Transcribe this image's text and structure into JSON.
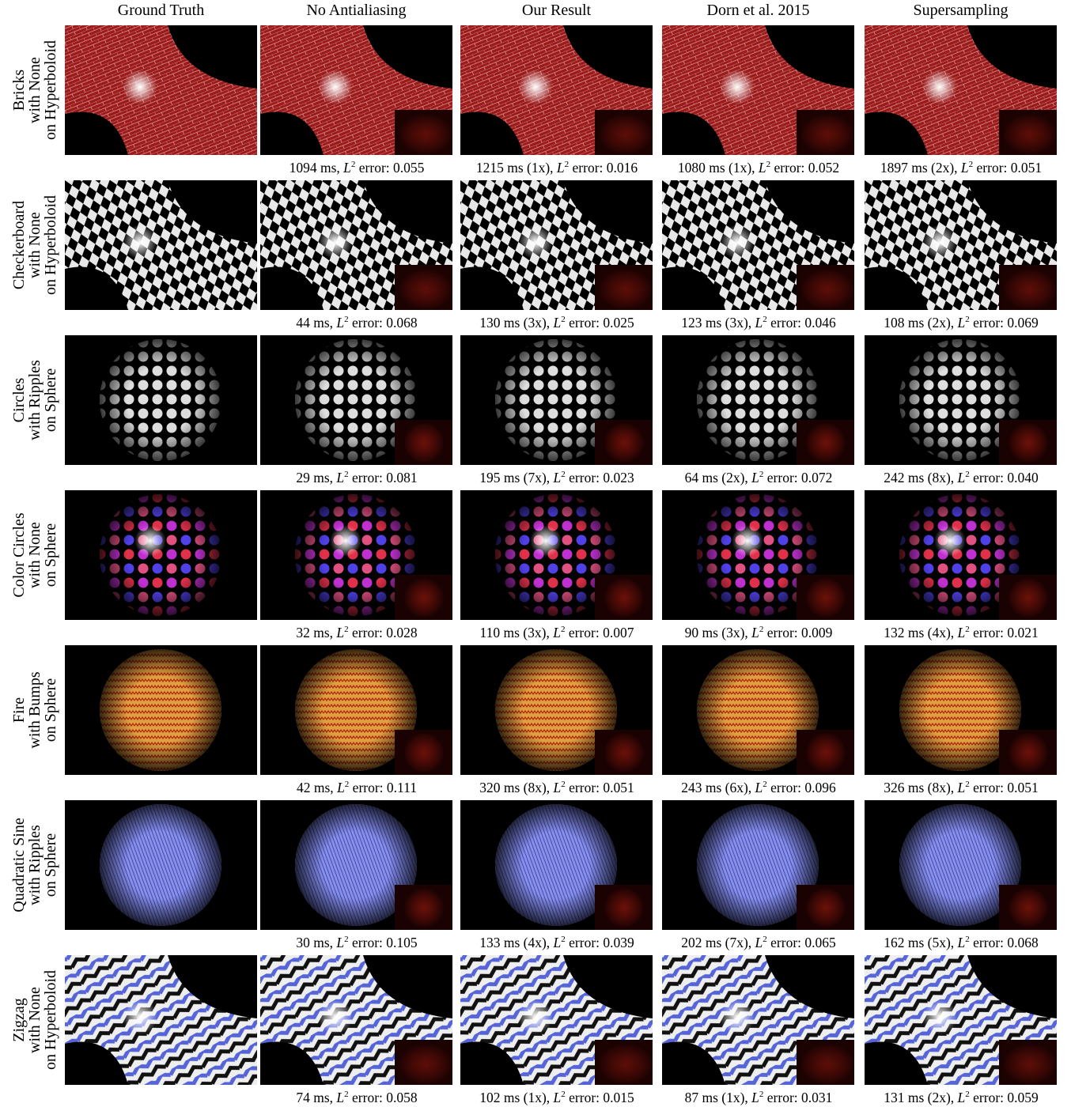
{
  "columns": [
    "Ground Truth",
    "No Antialiasing",
    "Our Result",
    "Dorn et al. 2015",
    "Supersampling"
  ],
  "rows": [
    {
      "label": [
        "Bricks",
        "with None",
        "on Hyperboloid"
      ],
      "captions": [
        [
          "1094 ms,",
          "L",
          "2",
          "error: 0.055"
        ],
        [
          "1215 ms (1x),",
          "L",
          "2",
          "error: 0.016"
        ],
        [
          "1080 ms (1x),",
          "L",
          "2",
          "error: 0.052"
        ],
        [
          "1897 ms (2x),",
          "L",
          "2",
          "error: 0.051"
        ]
      ]
    },
    {
      "label": [
        "Checkerboard",
        "with None",
        "on Hyperboloid"
      ],
      "captions": [
        [
          "44 ms,",
          "L",
          "2",
          "error: 0.068"
        ],
        [
          "130 ms (3x),",
          "L",
          "2",
          "error: 0.025"
        ],
        [
          "123 ms (3x),",
          "L",
          "2",
          "error: 0.046"
        ],
        [
          "108 ms (2x),",
          "L",
          "2",
          "error: 0.069"
        ]
      ]
    },
    {
      "label": [
        "Circles",
        "with Ripples",
        "on Sphere"
      ],
      "captions": [
        [
          "29 ms,",
          "L",
          "2",
          "error: 0.081"
        ],
        [
          "195 ms (7x),",
          "L",
          "2",
          "error: 0.023"
        ],
        [
          "64 ms (2x),",
          "L",
          "2",
          "error: 0.072"
        ],
        [
          "242 ms (8x),",
          "L",
          "2",
          "error: 0.040"
        ]
      ]
    },
    {
      "label": [
        "Color Circles",
        "with None",
        "on Sphere"
      ],
      "captions": [
        [
          "32 ms,",
          "L",
          "2",
          "error: 0.028"
        ],
        [
          "110 ms (3x),",
          "L",
          "2",
          "error: 0.007"
        ],
        [
          "90 ms (3x),",
          "L",
          "2",
          "error: 0.009"
        ],
        [
          "132 ms (4x),",
          "L",
          "2",
          "error: 0.021"
        ]
      ]
    },
    {
      "label": [
        "Fire",
        "with Bumps",
        "on Sphere"
      ],
      "captions": [
        [
          "42 ms,",
          "L",
          "2",
          "error: 0.111"
        ],
        [
          "320 ms (8x),",
          "L",
          "2",
          "error: 0.051"
        ],
        [
          "243 ms (6x),",
          "L",
          "2",
          "error: 0.096"
        ],
        [
          "326 ms (8x),",
          "L",
          "2",
          "error: 0.051"
        ]
      ]
    },
    {
      "label": [
        "Quadratic Sine",
        "with Ripples",
        "on Sphere"
      ],
      "captions": [
        [
          "30 ms,",
          "L",
          "2",
          "error: 0.105"
        ],
        [
          "133 ms (4x),",
          "L",
          "2",
          "error: 0.039"
        ],
        [
          "202 ms (7x),",
          "L",
          "2",
          "error: 0.065"
        ],
        [
          "162 ms (5x),",
          "L",
          "2",
          "error: 0.068"
        ]
      ]
    },
    {
      "label": [
        "Zigzag",
        "with None",
        "on Hyperboloid"
      ],
      "captions": [
        [
          "74 ms,",
          "L",
          "2",
          "error: 0.058"
        ],
        [
          "102 ms (1x),",
          "L",
          "2",
          "error: 0.015"
        ],
        [
          "87 ms (1x),",
          "L",
          "2",
          "error: 0.031"
        ],
        [
          "131 ms (2x),",
          "L",
          "2",
          "error: 0.059"
        ]
      ]
    }
  ]
}
